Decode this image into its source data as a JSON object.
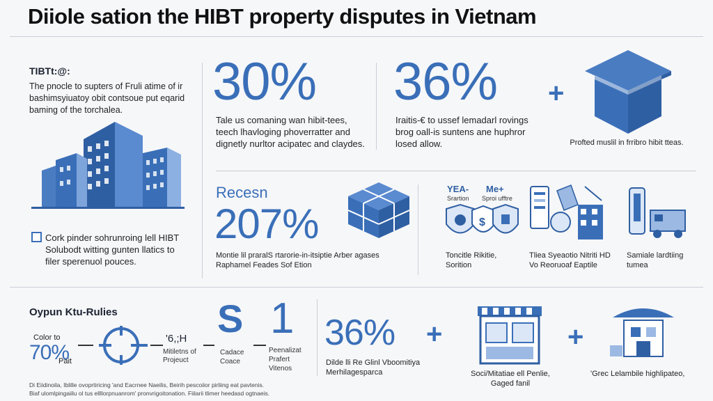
{
  "title": "Diiole sation the HIBT property disputes in Vietnam",
  "left_panel": {
    "heading": "TIBTt:@:",
    "intro": "The pnocle to supters of Fruli atime of ir bashimsyiuatoy obit contsoue put eqarid baming of the torchalea.",
    "checkbox_text": "Cork pinder sohrunroing lell HIBT Solubodt witting gunten llatics to filer sperenuol pouces."
  },
  "stat_30": {
    "value": "30%",
    "desc": "Tale us comaning wan hibit-tees, teech lhavloging phoverratter and dignetly nurltor acipatec and claydes."
  },
  "stat_36_top": {
    "value": "36%",
    "desc": "Iraitis-€ to ussef lemadarl rovings brog oall-is suntens ane huphror losed allow."
  },
  "top_right": {
    "plus": "+",
    "caption": "Profted muslil in frribro hibit tteas."
  },
  "mid_stat": {
    "label": "Recesn",
    "value": "207%",
    "desc": "Montie lil praralS rtarorie-in-itsiptie Arber agases Raphamel Feades Sof Etion"
  },
  "icon_group_1": {
    "label_a": "YEA-",
    "label_b": "Me+",
    "sub_a": "Srartion",
    "sub_b": "Sproi ufftre",
    "caption": "Toncitle Rikitie, Sorition"
  },
  "icon_group_2": {
    "caption": "Tliea Syeaotio Nitriti HD Vo Reoruoaf Eaptile"
  },
  "icon_group_3": {
    "caption": "Samiale lardtiing tumea"
  },
  "bottom_left": {
    "heading": "Oypun Ktu-Rulies",
    "color_label": "Color to",
    "value": "70%",
    "unit": "Pait",
    "step_value": "'6,;H",
    "step_label": "Mitiletns of Projeuct",
    "s_letter": "S",
    "s_label": "Cadace Coace",
    "one": "1",
    "one_label": "Peenalizat Prafert Vitenos"
  },
  "bottom_stat": {
    "value": "36%",
    "plus": "+",
    "desc": "Dilde lli Re Glinl Vboomitiya Merhilagesparca"
  },
  "bottom_store": {
    "caption": "Soci/Mitatiae ell Penlie, Gaged fanil",
    "plus": "+"
  },
  "bottom_right": {
    "caption": "'Grec Lelambile highlipateo,"
  },
  "footer": {
    "line1": "Di Eiidinoila, Iblille ovoprtiricing 'and Eacrnee Naeilis, Beirih pescoiior pirliing eat pavtenis.",
    "line2": "Biaf ulomlpingaiilu ol tus ellllorpnuanrom' pronvrigoitonation. Fiilarii tlimer heedasd ogtnaeis."
  },
  "colors": {
    "accent": "#3a6fb8",
    "dark": "#23406e",
    "light": "#9bb9e3"
  }
}
